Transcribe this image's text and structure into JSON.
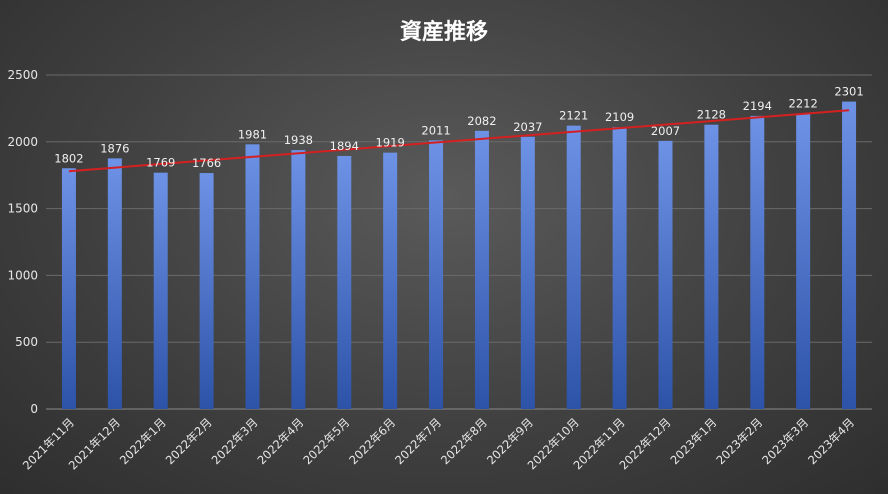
{
  "chart_data": {
    "type": "bar",
    "title": "資産推移",
    "xlabel": "",
    "ylabel": "",
    "categories": [
      "2021年11月",
      "2021年12月",
      "2022年1月",
      "2022年2月",
      "2022年3月",
      "2022年4月",
      "2022年5月",
      "2022年6月",
      "2022年7月",
      "2022年8月",
      "2022年9月",
      "2022年10月",
      "2022年11月",
      "2022年12月",
      "2023年1月",
      "2023年2月",
      "2023年3月",
      "2023年4月"
    ],
    "values": [
      1802,
      1876,
      1769,
      1766,
      1981,
      1938,
      1894,
      1919,
      2011,
      2082,
      2037,
      2121,
      2109,
      2007,
      2128,
      2194,
      2212,
      2301
    ],
    "ylim": [
      0,
      2500
    ],
    "yticks": [
      0,
      500,
      1000,
      1500,
      2000,
      2500
    ],
    "grid": true,
    "data_labels": true,
    "trendline": {
      "type": "linear",
      "color": "#d42020"
    },
    "colors": {
      "bar_top": "#6d92e6",
      "bar_bottom": "#2d53a8",
      "title": "#ffffff",
      "text": "#e6e6e6"
    }
  }
}
